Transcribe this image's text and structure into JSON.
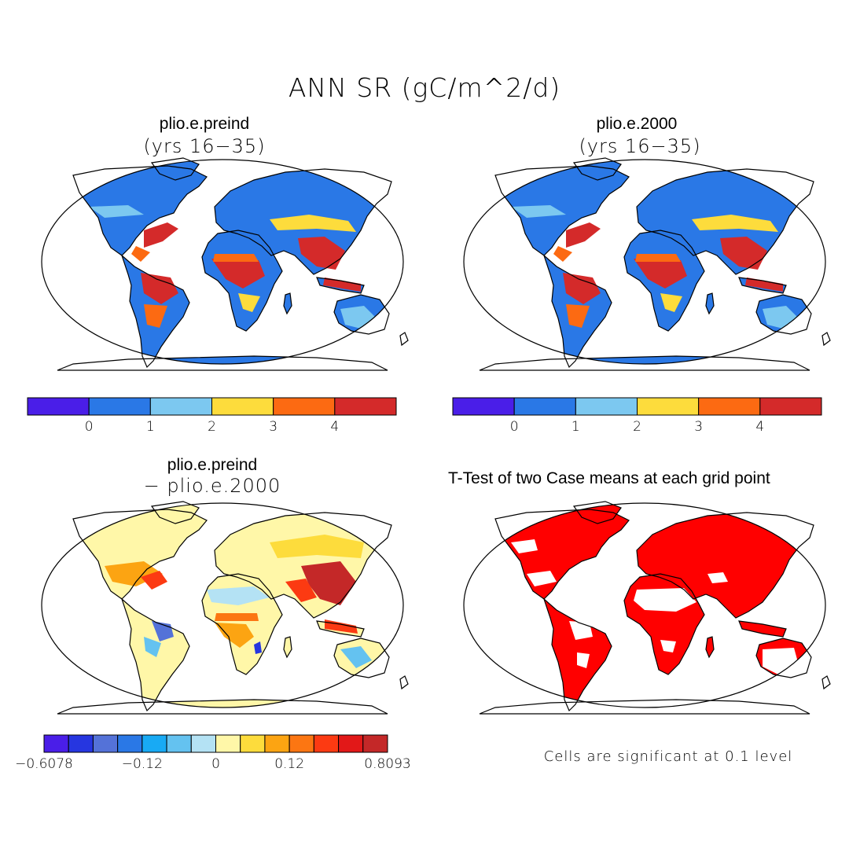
{
  "title": "ANN SR (gC/m^2/d)",
  "panels": [
    {
      "id": "top-left",
      "title": "plio.e.preind",
      "subtitle": "(yrs 16−35)"
    },
    {
      "id": "top-right",
      "title": "plio.e.2000",
      "subtitle": "(yrs 16−35)"
    },
    {
      "id": "bottom-left",
      "title": "plio.e.preind",
      "subtitle": "− plio.e.2000"
    },
    {
      "id": "bottom-right",
      "title": "T-Test of two Case means at each grid point",
      "subtitle": ""
    }
  ],
  "colorbar_absolute": {
    "colors": [
      "#4a1ee8",
      "#2a78e6",
      "#7cc8f0",
      "#fddc3c",
      "#fc6a12",
      "#d42a2a"
    ],
    "tick_labels": [
      "0",
      "1",
      "2",
      "3",
      "4"
    ]
  },
  "colorbar_difference": {
    "colors": [
      "#4a1ee8",
      "#2636e0",
      "#5472d8",
      "#2a78e6",
      "#18aaf4",
      "#64c2f0",
      "#b4e2f4",
      "#fff7a8",
      "#fddc3c",
      "#fca412",
      "#fc7612",
      "#fc3a12",
      "#e21818",
      "#c42828"
    ],
    "tick_labels": [
      "−0.6078",
      "−0.12",
      "0",
      "0.12",
      "0.8093"
    ]
  },
  "significance_note": "Cells are significant at 0.1 level",
  "palette": {
    "ocean": "#ffffff",
    "land_absolute_base": "#2a78e6",
    "land_difference_base": "#fff7a8",
    "significant_cells": "#ff0000"
  }
}
